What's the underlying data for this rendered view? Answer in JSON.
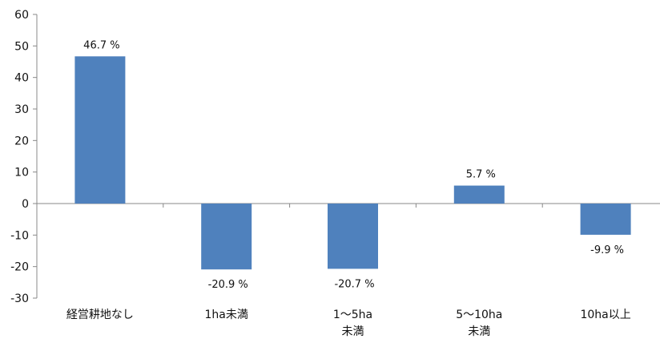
{
  "chart_data": {
    "type": "bar",
    "title": "",
    "xlabel": "",
    "ylabel": "",
    "categories": [
      [
        "経営耕地なし"
      ],
      [
        "1ha未満"
      ],
      [
        "1～5ha",
        "未満"
      ],
      [
        "5～10ha",
        "未満"
      ],
      [
        "10ha以上"
      ]
    ],
    "values": [
      46.7,
      -20.9,
      -20.7,
      5.7,
      -9.9
    ],
    "data_labels": [
      "46.7 %",
      "-20.9 %",
      "-20.7 %",
      "5.7 %",
      "-9.9 %"
    ],
    "ylim": [
      -30,
      60
    ],
    "yticks": [
      60,
      50,
      40,
      30,
      20,
      10,
      0,
      -10,
      -20,
      -30
    ],
    "grid": false,
    "legend": "none",
    "colors": {
      "bar": "#4f81bd",
      "axis": "#888888",
      "text": "#111111"
    }
  }
}
